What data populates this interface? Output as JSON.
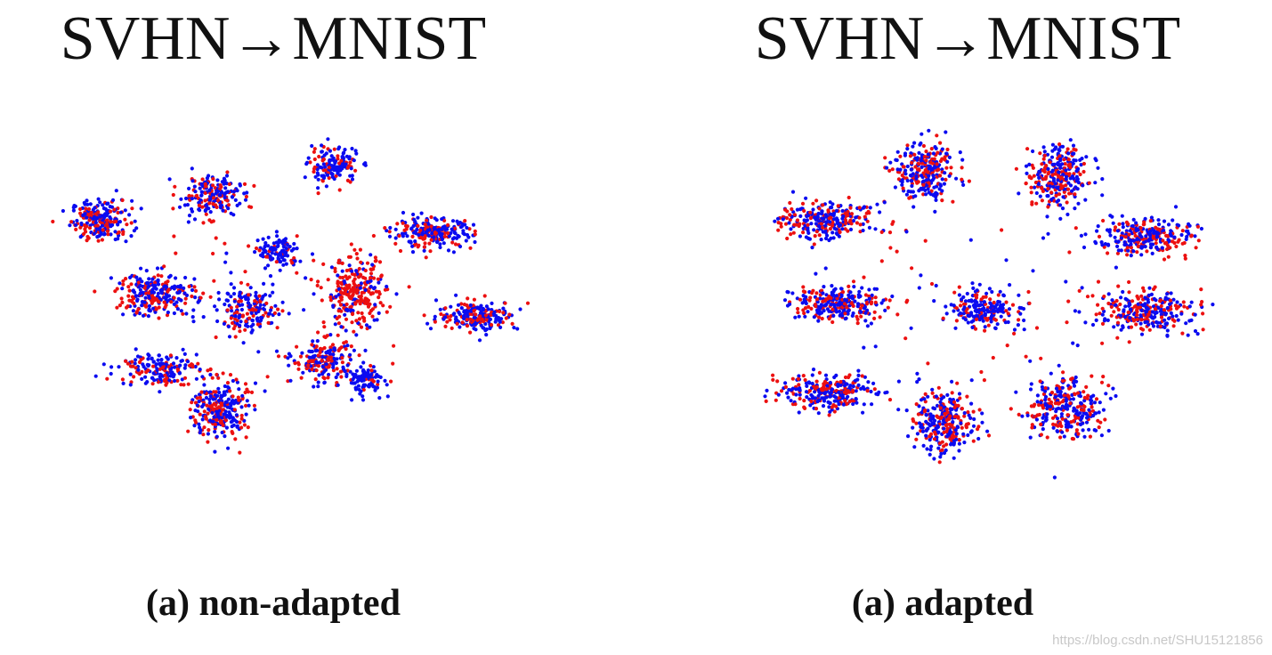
{
  "watermark": "https://blog.csdn.net/SHU15121856",
  "colors": {
    "source": "#0b0bf0",
    "target": "#ec1010"
  },
  "chart_data": [
    {
      "type": "scatter",
      "title": "SVHN→MNIST",
      "caption": "(a) non-adapted",
      "grid": false,
      "legend": "none",
      "xlim": [
        -10,
        10
      ],
      "ylim": [
        -10,
        10
      ],
      "series": [
        {
          "color": "blue"
        },
        {
          "color": "red"
        }
      ],
      "clusters": [
        {
          "center": [
            -8.0,
            5.0
          ],
          "spread": [
            1.2,
            1.1
          ],
          "blue": 130,
          "red": 90
        },
        {
          "center": [
            -3.2,
            6.5
          ],
          "spread": [
            1.2,
            1.1
          ],
          "blue": 120,
          "red": 80
        },
        {
          "center": [
            2.2,
            8.3
          ],
          "spread": [
            1.0,
            1.0
          ],
          "blue": 110,
          "red": 40
        },
        {
          "center": [
            6.6,
            4.2
          ],
          "spread": [
            1.6,
            0.8
          ],
          "blue": 150,
          "red": 80
        },
        {
          "center": [
            8.6,
            -0.8
          ],
          "spread": [
            1.6,
            0.8
          ],
          "blue": 130,
          "red": 80
        },
        {
          "center": [
            -0.2,
            3.0
          ],
          "spread": [
            0.8,
            0.9
          ],
          "blue": 90,
          "red": 20
        },
        {
          "center": [
            3.2,
            0.6
          ],
          "spread": [
            1.2,
            1.9
          ],
          "blue": 60,
          "red": 200
        },
        {
          "center": [
            -5.6,
            0.5
          ],
          "spread": [
            1.6,
            1.2
          ],
          "blue": 140,
          "red": 100
        },
        {
          "center": [
            -1.5,
            -0.5
          ],
          "spread": [
            1.3,
            1.2
          ],
          "blue": 120,
          "red": 60
        },
        {
          "center": [
            -5.5,
            -4.0
          ],
          "spread": [
            1.6,
            0.9
          ],
          "blue": 110,
          "red": 60
        },
        {
          "center": [
            -2.8,
            -6.5
          ],
          "spread": [
            1.1,
            1.7
          ],
          "blue": 150,
          "red": 120
        },
        {
          "center": [
            1.8,
            -3.5
          ],
          "spread": [
            1.2,
            1.2
          ],
          "blue": 90,
          "red": 90
        },
        {
          "center": [
            3.6,
            -4.7
          ],
          "spread": [
            0.8,
            0.8
          ],
          "blue": 80,
          "red": 10
        }
      ]
    },
    {
      "type": "scatter",
      "title": "SVHN→MNIST",
      "caption": "(a) adapted",
      "grid": false,
      "legend": "none",
      "xlim": [
        -10,
        10
      ],
      "ylim": [
        -10,
        10
      ],
      "series": [
        {
          "color": "blue"
        },
        {
          "color": "red"
        }
      ],
      "clusters": [
        {
          "center": [
            -6.6,
            5.0
          ],
          "spread": [
            1.9,
            1.0
          ],
          "blue": 150,
          "red": 110
        },
        {
          "center": [
            -2.2,
            8.0
          ],
          "spread": [
            1.2,
            1.7
          ],
          "blue": 160,
          "red": 120
        },
        {
          "center": [
            3.7,
            7.7
          ],
          "spread": [
            1.2,
            1.7
          ],
          "blue": 160,
          "red": 120
        },
        {
          "center": [
            7.4,
            4.0
          ],
          "spread": [
            1.9,
            1.0
          ],
          "blue": 150,
          "red": 110
        },
        {
          "center": [
            -6.0,
            0.0
          ],
          "spread": [
            1.8,
            1.0
          ],
          "blue": 160,
          "red": 100
        },
        {
          "center": [
            0.5,
            -0.4
          ],
          "spread": [
            1.5,
            1.0
          ],
          "blue": 140,
          "red": 60
        },
        {
          "center": [
            7.5,
            -0.6
          ],
          "spread": [
            1.8,
            1.2
          ],
          "blue": 150,
          "red": 130
        },
        {
          "center": [
            -6.4,
            -5.5
          ],
          "spread": [
            2.0,
            1.0
          ],
          "blue": 150,
          "red": 110
        },
        {
          "center": [
            -1.3,
            -7.3
          ],
          "spread": [
            1.2,
            1.7
          ],
          "blue": 160,
          "red": 120
        },
        {
          "center": [
            4.0,
            -6.4
          ],
          "spread": [
            1.5,
            1.6
          ],
          "blue": 160,
          "red": 120
        }
      ]
    }
  ]
}
